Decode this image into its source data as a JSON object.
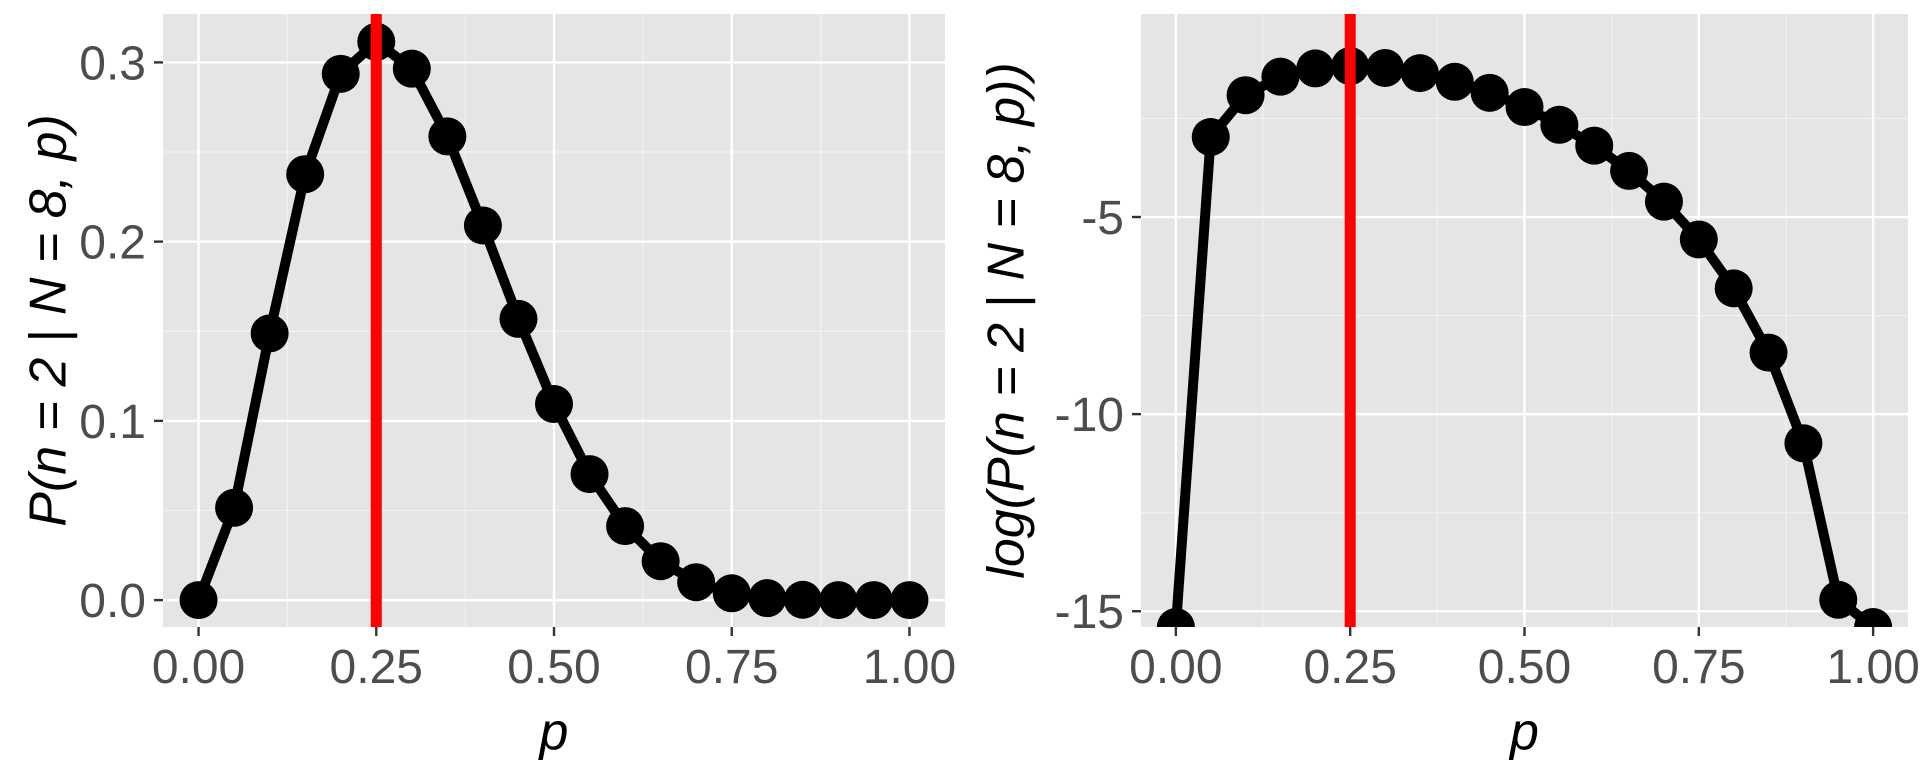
{
  "chart_data": [
    {
      "type": "line",
      "xlabel": "p",
      "ylabel": "P(n = 2 | N = 8, p)",
      "xlim": [
        -0.05,
        1.05
      ],
      "ylim": [
        -0.015,
        0.327
      ],
      "x_ticks": [
        0.0,
        0.25,
        0.5,
        0.75,
        1.0
      ],
      "x_tick_labels": [
        "0.00",
        "0.25",
        "0.50",
        "0.75",
        "1.00"
      ],
      "y_ticks": [
        0.0,
        0.1,
        0.2,
        0.3
      ],
      "y_tick_labels": [
        "0.0",
        "0.1",
        "0.2",
        "0.3"
      ],
      "grid": true,
      "vline": {
        "x": 0.25,
        "color": "#ff0000"
      },
      "x": [
        0.0,
        0.05,
        0.1,
        0.15,
        0.2,
        0.25,
        0.3,
        0.35,
        0.4,
        0.45,
        0.5,
        0.55,
        0.6,
        0.65,
        0.7,
        0.75,
        0.8,
        0.85,
        0.9,
        0.95,
        1.0
      ],
      "values": [
        0.0,
        0.0515,
        0.1488,
        0.2376,
        0.2936,
        0.3115,
        0.2965,
        0.2587,
        0.209,
        0.1569,
        0.1094,
        0.0703,
        0.0413,
        0.0217,
        0.01,
        0.0038,
        0.0011,
        0.0002,
        2e-05,
        3e-07,
        0.0
      ]
    },
    {
      "type": "line",
      "xlabel": "p",
      "ylabel": "log(P(n = 2 | N = 8, p))",
      "xlim": [
        -0.05,
        1.05
      ],
      "ylim": [
        -15.4,
        0.15
      ],
      "x_ticks": [
        0.0,
        0.25,
        0.5,
        0.75,
        1.0
      ],
      "x_tick_labels": [
        "0.00",
        "0.25",
        "0.50",
        "0.75",
        "1.00"
      ],
      "y_ticks": [
        -15,
        -10,
        -5
      ],
      "y_tick_labels": [
        "-15",
        "-10",
        "-5"
      ],
      "grid": true,
      "vline": {
        "x": 0.25,
        "color": "#ff0000"
      },
      "x": [
        0.0,
        0.05,
        0.1,
        0.15,
        0.2,
        0.25,
        0.3,
        0.35,
        0.4,
        0.45,
        0.5,
        0.55,
        0.6,
        0.65,
        0.7,
        0.75,
        0.8,
        0.85,
        0.9,
        0.95,
        1.0
      ],
      "values": [
        -15.4,
        -2.97,
        -1.91,
        -1.44,
        -1.23,
        -1.17,
        -1.22,
        -1.35,
        -1.57,
        -1.85,
        -2.21,
        -2.66,
        -3.19,
        -3.83,
        -4.61,
        -5.57,
        -6.81,
        -8.44,
        -10.74,
        -14.71,
        -15.4
      ]
    }
  ]
}
